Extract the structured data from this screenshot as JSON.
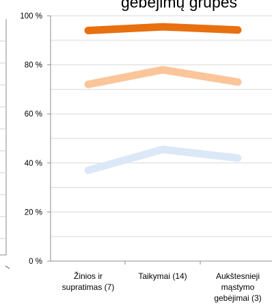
{
  "chart_data": {
    "type": "line",
    "title": "gebėjimų grupės",
    "xlabel": "",
    "ylabel": "",
    "ylim": [
      0,
      100
    ],
    "grid": true,
    "legend": "none",
    "y_ticks": [
      {
        "value": 0,
        "label": "0 %"
      },
      {
        "value": 20,
        "label": "20 %"
      },
      {
        "value": 40,
        "label": "40 %"
      },
      {
        "value": 60,
        "label": "60 %"
      },
      {
        "value": 80,
        "label": "80 %"
      },
      {
        "value": 100,
        "label": "100 %"
      }
    ],
    "categories": [
      [
        "Žinios ir",
        "supratimas (7)"
      ],
      [
        "Taikymai (14)"
      ],
      [
        "Aukštesnieji",
        "mąstymo",
        "gebėjimai (3)"
      ]
    ],
    "series": [
      {
        "values": [
          94,
          95.5,
          94.2
        ],
        "color": "#e8700f"
      },
      {
        "values": [
          72,
          78,
          73
        ],
        "color": "#fbc59a"
      },
      {
        "values": [
          37,
          45.5,
          42
        ],
        "color": "#dbe8f7"
      }
    ]
  }
}
